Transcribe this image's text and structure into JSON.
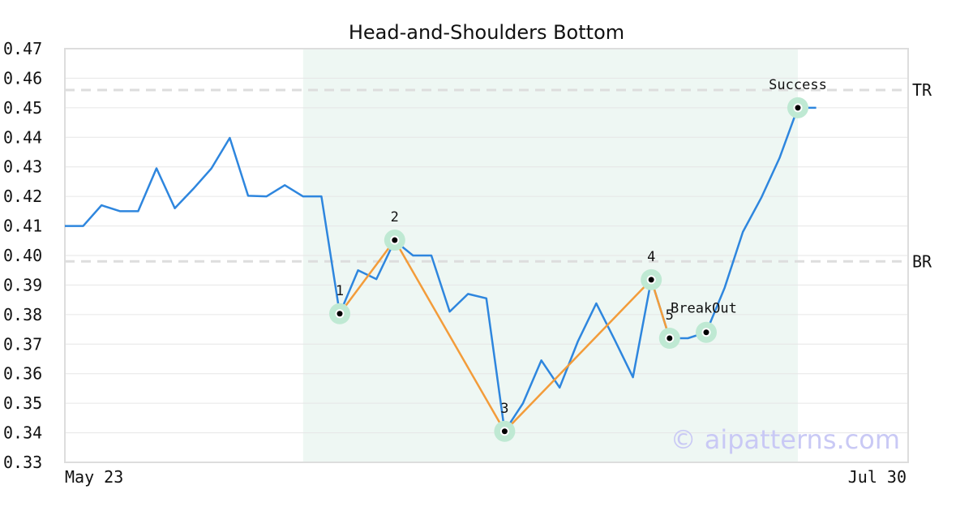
{
  "chart_data": {
    "type": "line",
    "title": "Head-and-Shoulders Bottom",
    "ylim": [
      0.33,
      0.47
    ],
    "yticks": [
      "0.47",
      "0.46",
      "0.45",
      "0.44",
      "0.43",
      "0.42",
      "0.41",
      "0.40",
      "0.39",
      "0.38",
      "0.37",
      "0.36",
      "0.35",
      "0.34",
      "0.33"
    ],
    "x_range_labels": [
      "May 23",
      "Jul 30"
    ],
    "grid": true,
    "series": [
      {
        "color": "#2e86de",
        "values": [
          0.41,
          0.41,
          0.417,
          0.415,
          0.415,
          0.4295,
          0.416,
          0.4225,
          0.4295,
          0.4398,
          0.4202,
          0.42,
          0.4238,
          0.42,
          0.42,
          0.3803,
          0.395,
          0.392,
          0.405,
          0.4,
          0.4,
          0.381,
          0.387,
          0.3855,
          0.3405,
          0.35,
          0.3645,
          0.3553,
          0.371,
          0.3838,
          0.3715,
          0.3588,
          0.3918,
          0.372,
          0.372,
          0.374,
          0.389,
          0.408,
          0.4195,
          0.433,
          0.45,
          0.45
        ]
      },
      {
        "color": "#f39c3a",
        "points": [
          [
            15,
            0.3803
          ],
          [
            18,
            0.4052
          ],
          [
            24,
            0.3405
          ],
          [
            32,
            0.3918
          ],
          [
            33,
            0.372
          ]
        ]
      }
    ],
    "pattern_points": [
      {
        "label": "1",
        "x": 15,
        "y": 0.3803
      },
      {
        "label": "2",
        "x": 18,
        "y": 0.4052
      },
      {
        "label": "3",
        "x": 24,
        "y": 0.3405
      },
      {
        "label": "4",
        "x": 32,
        "y": 0.3918
      },
      {
        "label": "5",
        "x": 33,
        "y": 0.372
      },
      {
        "label": "BreakOut",
        "x": 35,
        "y": 0.374
      },
      {
        "label": "Success",
        "x": 40,
        "y": 0.45
      }
    ],
    "levels": [
      {
        "label": "TR",
        "y": 0.456
      },
      {
        "label": "BR",
        "y": 0.398
      }
    ],
    "highlight_range": [
      13,
      40
    ],
    "colors": {
      "line": "#2e86de",
      "pattern": "#f39c3a",
      "highlight": "#eef7f3",
      "marker_ring": "#bfe9d3",
      "level": "#dddddd"
    }
  },
  "watermark": "© aipatterns.com"
}
